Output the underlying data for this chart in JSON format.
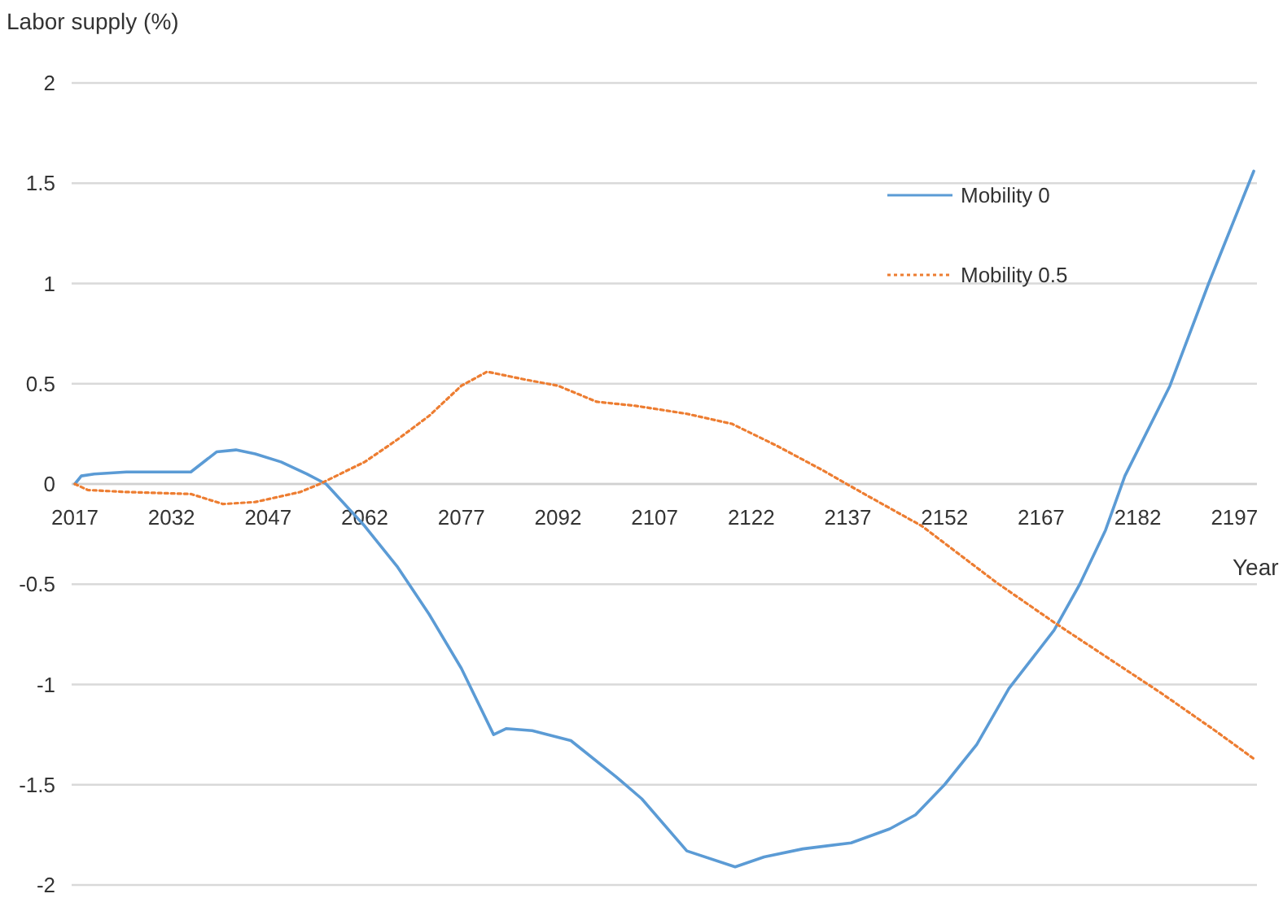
{
  "chart_data": {
    "type": "line",
    "xlabel": "Year",
    "ylabel": "Labor supply (%)",
    "xlim": [
      2016.5,
      2200.5
    ],
    "xticks": [
      2017,
      2032,
      2047,
      2062,
      2077,
      2092,
      2107,
      2122,
      2137,
      2152,
      2167,
      2182,
      2197
    ],
    "ylim": [
      -2,
      2
    ],
    "yticks": [
      -2,
      -1.5,
      -1,
      -0.5,
      0,
      0.5,
      1,
      1.5,
      2
    ],
    "grid": "y",
    "legend": "top right",
    "series": [
      {
        "name": "Mobility 0",
        "color": "#5b9bd5",
        "line_style": "solid",
        "x": [
          2017,
          2018,
          2020,
          2025,
          2035,
          2039,
          2042,
          2045,
          2049,
          2053,
          2056,
          2062,
          2067,
          2072,
          2077,
          2082,
          2084,
          2088,
          2094,
          2101,
          2105,
          2112,
          2119.5,
          2124,
          2130,
          2137.5,
          2143.5,
          2147.5,
          2152,
          2157,
          2162,
          2169,
          2173,
          2177,
          2180,
          2187,
          2193,
          2200
        ],
        "values": [
          0,
          0.04,
          0.05,
          0.06,
          0.06,
          0.16,
          0.17,
          0.15,
          0.11,
          0.05,
          0,
          -0.21,
          -0.41,
          -0.65,
          -0.92,
          -1.25,
          -1.22,
          -1.23,
          -1.28,
          -1.46,
          -1.57,
          -1.83,
          -1.91,
          -1.86,
          -1.82,
          -1.79,
          -1.72,
          -1.65,
          -1.5,
          -1.3,
          -1.02,
          -0.73,
          -0.5,
          -0.23,
          0.04,
          0.49,
          1,
          1.56
        ]
      },
      {
        "name": "Mobility 0.5",
        "color": "#ed7d31",
        "line_style": "dotted",
        "x": [
          2017,
          2019,
          2025,
          2035,
          2040,
          2045,
          2052,
          2055,
          2062,
          2067,
          2072,
          2077,
          2081,
          2087,
          2092,
          2098,
          2104,
          2112,
          2119,
          2126,
          2133,
          2139,
          2148.5,
          2160,
          2169,
          2177,
          2185.5,
          2194,
          2200
        ],
        "values": [
          0,
          -0.03,
          -0.04,
          -0.05,
          -0.1,
          -0.09,
          -0.04,
          0,
          0.11,
          0.22,
          0.34,
          0.49,
          0.56,
          0.52,
          0.49,
          0.41,
          0.39,
          0.35,
          0.3,
          0.19,
          0.07,
          -0.04,
          -0.21,
          -0.49,
          -0.69,
          -0.86,
          -1.04,
          -1.23,
          -1.37
        ]
      }
    ]
  }
}
